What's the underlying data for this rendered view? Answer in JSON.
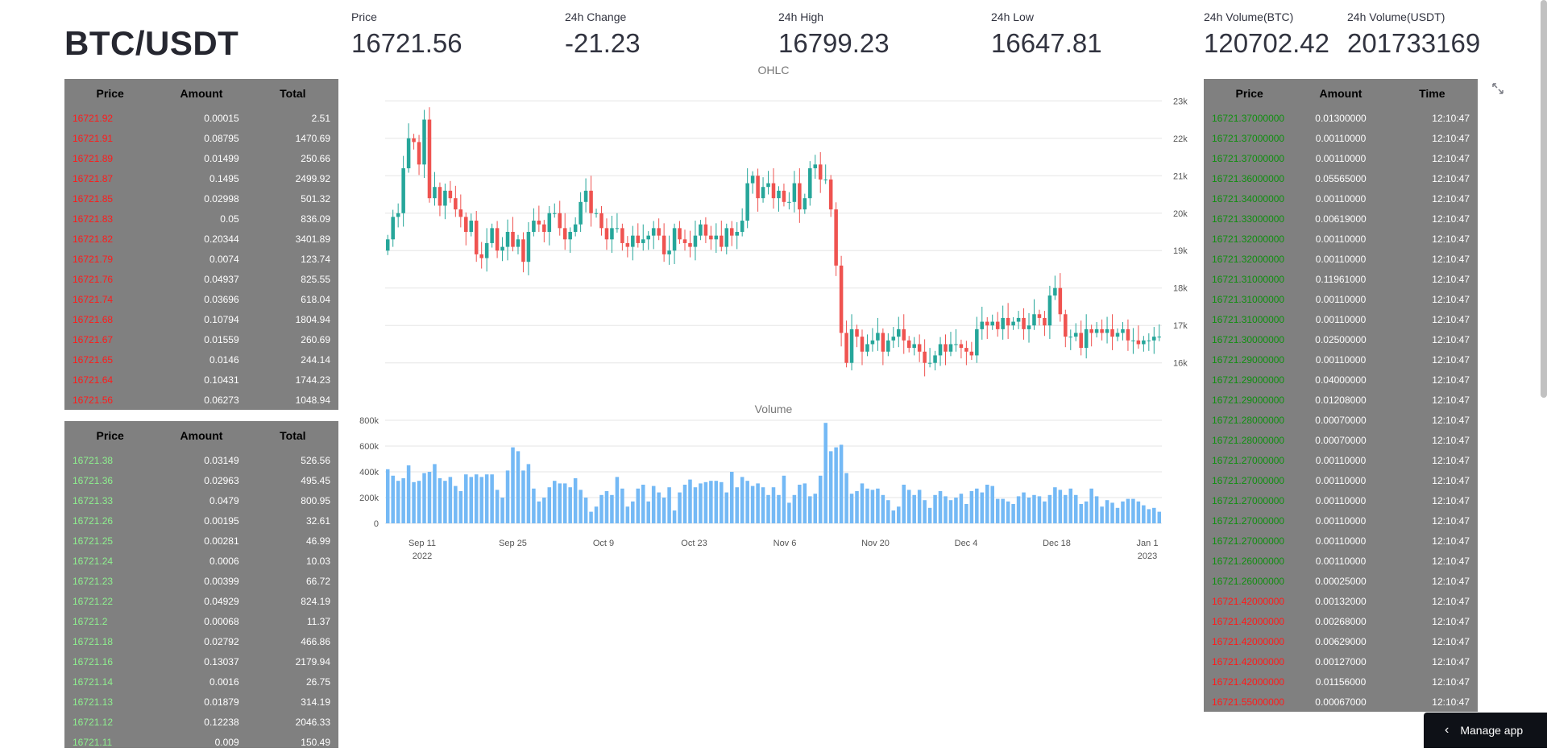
{
  "title": "BTC/USDT",
  "metrics": [
    {
      "label": "Price",
      "value": "16721.56"
    },
    {
      "label": "24h Change",
      "value": "-21.23"
    },
    {
      "label": "24h High",
      "value": "16799.23"
    },
    {
      "label": "24h Low",
      "value": "16647.81"
    },
    {
      "label": "24h Volume(BTC)",
      "value": "120702.42"
    },
    {
      "label": "24h Volume(USDT)",
      "value": "201733169"
    }
  ],
  "asks": {
    "headers": [
      "Price",
      "Amount",
      "Total"
    ],
    "rows": [
      [
        "16721.92",
        "0.00015",
        "2.51"
      ],
      [
        "16721.91",
        "0.08795",
        "1470.69"
      ],
      [
        "16721.89",
        "0.01499",
        "250.66"
      ],
      [
        "16721.87",
        "0.1495",
        "2499.92"
      ],
      [
        "16721.85",
        "0.02998",
        "501.32"
      ],
      [
        "16721.83",
        "0.05",
        "836.09"
      ],
      [
        "16721.82",
        "0.20344",
        "3401.89"
      ],
      [
        "16721.79",
        "0.0074",
        "123.74"
      ],
      [
        "16721.76",
        "0.04937",
        "825.55"
      ],
      [
        "16721.74",
        "0.03696",
        "618.04"
      ],
      [
        "16721.68",
        "0.10794",
        "1804.94"
      ],
      [
        "16721.67",
        "0.01559",
        "260.69"
      ],
      [
        "16721.65",
        "0.0146",
        "244.14"
      ],
      [
        "16721.64",
        "0.10431",
        "1744.23"
      ],
      [
        "16721.56",
        "0.06273",
        "1048.94"
      ]
    ]
  },
  "bids": {
    "headers": [
      "Price",
      "Amount",
      "Total"
    ],
    "rows": [
      [
        "16721.38",
        "0.03149",
        "526.56"
      ],
      [
        "16721.36",
        "0.02963",
        "495.45"
      ],
      [
        "16721.33",
        "0.0479",
        "800.95"
      ],
      [
        "16721.26",
        "0.00195",
        "32.61"
      ],
      [
        "16721.25",
        "0.00281",
        "46.99"
      ],
      [
        "16721.24",
        "0.0006",
        "10.03"
      ],
      [
        "16721.23",
        "0.00399",
        "66.72"
      ],
      [
        "16721.22",
        "0.04929",
        "824.19"
      ],
      [
        "16721.2",
        "0.00068",
        "11.37"
      ],
      [
        "16721.18",
        "0.02792",
        "466.86"
      ],
      [
        "16721.16",
        "0.13037",
        "2179.94"
      ],
      [
        "16721.14",
        "0.0016",
        "26.75"
      ],
      [
        "16721.13",
        "0.01879",
        "314.19"
      ],
      [
        "16721.12",
        "0.12238",
        "2046.33"
      ],
      [
        "16721.11",
        "0.009",
        "150.49"
      ]
    ]
  },
  "trades": {
    "headers": [
      "Price",
      "Amount",
      "Time"
    ],
    "rows": [
      [
        "16721.37000000",
        "0.01300000",
        "12:10:47",
        "buy"
      ],
      [
        "16721.37000000",
        "0.00110000",
        "12:10:47",
        "buy"
      ],
      [
        "16721.37000000",
        "0.00110000",
        "12:10:47",
        "buy"
      ],
      [
        "16721.36000000",
        "0.05565000",
        "12:10:47",
        "buy"
      ],
      [
        "16721.34000000",
        "0.00110000",
        "12:10:47",
        "buy"
      ],
      [
        "16721.33000000",
        "0.00619000",
        "12:10:47",
        "buy"
      ],
      [
        "16721.32000000",
        "0.00110000",
        "12:10:47",
        "buy"
      ],
      [
        "16721.32000000",
        "0.00110000",
        "12:10:47",
        "buy"
      ],
      [
        "16721.31000000",
        "0.11961000",
        "12:10:47",
        "buy"
      ],
      [
        "16721.31000000",
        "0.00110000",
        "12:10:47",
        "buy"
      ],
      [
        "16721.31000000",
        "0.00110000",
        "12:10:47",
        "buy"
      ],
      [
        "16721.30000000",
        "0.02500000",
        "12:10:47",
        "buy"
      ],
      [
        "16721.29000000",
        "0.00110000",
        "12:10:47",
        "buy"
      ],
      [
        "16721.29000000",
        "0.04000000",
        "12:10:47",
        "buy"
      ],
      [
        "16721.29000000",
        "0.01208000",
        "12:10:47",
        "buy"
      ],
      [
        "16721.28000000",
        "0.00070000",
        "12:10:47",
        "buy"
      ],
      [
        "16721.28000000",
        "0.00070000",
        "12:10:47",
        "buy"
      ],
      [
        "16721.27000000",
        "0.00110000",
        "12:10:47",
        "buy"
      ],
      [
        "16721.27000000",
        "0.00110000",
        "12:10:47",
        "buy"
      ],
      [
        "16721.27000000",
        "0.00110000",
        "12:10:47",
        "buy"
      ],
      [
        "16721.27000000",
        "0.00110000",
        "12:10:47",
        "buy"
      ],
      [
        "16721.27000000",
        "0.00110000",
        "12:10:47",
        "buy"
      ],
      [
        "16721.26000000",
        "0.00110000",
        "12:10:47",
        "buy"
      ],
      [
        "16721.26000000",
        "0.00025000",
        "12:10:47",
        "buy"
      ],
      [
        "16721.42000000",
        "0.00132000",
        "12:10:47",
        "sell"
      ],
      [
        "16721.42000000",
        "0.00268000",
        "12:10:47",
        "sell"
      ],
      [
        "16721.42000000",
        "0.00629000",
        "12:10:47",
        "sell"
      ],
      [
        "16721.42000000",
        "0.00127000",
        "12:10:47",
        "sell"
      ],
      [
        "16721.42000000",
        "0.01156000",
        "12:10:47",
        "sell"
      ],
      [
        "16721.55000000",
        "0.00067000",
        "12:10:47",
        "sell"
      ]
    ]
  },
  "manage_app": "Manage app",
  "chart_data": [
    {
      "type": "candlestick",
      "title": "OHLC",
      "up_color": "#26a69a",
      "down_color": "#ef5350",
      "ylim": [
        15800,
        23200
      ],
      "y_ticks": [
        "16k",
        "17k",
        "18k",
        "19k",
        "20k",
        "21k",
        "22k",
        "23k"
      ],
      "x_ticks": [
        "Sep 11\n2022",
        "Sep 25",
        "Oct 9",
        "Oct 23",
        "Nov 6",
        "Nov 20",
        "Dec 4",
        "Dec 18",
        "Jan 1\n2023"
      ],
      "close": [
        19300,
        19900,
        20000,
        21200,
        22000,
        21900,
        21300,
        22500,
        20400,
        20700,
        20200,
        20600,
        20400,
        20100,
        19900,
        19500,
        19800,
        18900,
        18800,
        19200,
        19600,
        19000,
        19100,
        19500,
        19100,
        19300,
        18700,
        19500,
        19800,
        19700,
        19500,
        20000,
        20000,
        19600,
        19300,
        19500,
        19700,
        20300,
        20600,
        20000,
        20000,
        19600,
        19300,
        19600,
        19600,
        19200,
        19100,
        19400,
        19200,
        19300,
        19400,
        19600,
        19400,
        18900,
        19000,
        19600,
        19300,
        19200,
        19100,
        19400,
        19700,
        19400,
        19300,
        19400,
        19100,
        19600,
        19400,
        19500,
        19800,
        20800,
        21000,
        20400,
        20700,
        20800,
        20400,
        20600,
        20300,
        20300,
        20800,
        20100,
        20400,
        21200,
        21300,
        20900,
        20900,
        20100,
        18600,
        16800,
        16000,
        16900,
        16700,
        16300,
        16500,
        16600,
        16800,
        16300,
        16600,
        16700,
        16900,
        16600,
        16400,
        16500,
        16300,
        16000,
        16000,
        16200,
        16500,
        16300,
        16500,
        16500,
        16400,
        16300,
        16200,
        16900,
        17100,
        17000,
        17100,
        16900,
        17200,
        17000,
        17100,
        17200,
        16900,
        17000,
        17300,
        17200,
        17000,
        17800,
        18000,
        17300,
        16700,
        16700,
        16800,
        16400,
        16900,
        16800,
        16900,
        16800,
        16900,
        16700,
        16800,
        16900,
        16600,
        16600,
        16500,
        16600,
        16600,
        16700,
        16700
      ],
      "volume": [
        420000,
        370000,
        330000,
        350000,
        450000,
        320000,
        330000,
        390000,
        400000,
        460000,
        350000,
        330000,
        360000,
        290000,
        250000,
        380000,
        360000,
        380000,
        360000,
        380000,
        380000,
        260000,
        200000,
        410000,
        590000,
        560000,
        410000,
        460000,
        270000,
        170000,
        200000,
        280000,
        330000,
        310000,
        310000,
        280000,
        350000,
        260000,
        200000,
        90000,
        130000,
        220000,
        250000,
        220000,
        360000,
        270000,
        130000,
        170000,
        270000,
        300000,
        170000,
        290000,
        240000,
        200000,
        280000,
        100000,
        240000,
        300000,
        340000,
        280000,
        310000,
        320000,
        330000,
        330000,
        320000,
        240000,
        400000,
        280000,
        360000,
        330000,
        290000,
        310000,
        280000,
        220000,
        280000,
        220000,
        370000,
        160000,
        220000,
        300000,
        310000,
        210000,
        230000,
        370000,
        780000,
        560000,
        590000,
        610000,
        390000,
        230000,
        250000,
        310000,
        270000,
        260000,
        270000,
        220000,
        180000,
        100000,
        130000,
        300000,
        260000,
        220000,
        260000,
        180000,
        120000,
        220000,
        250000,
        210000,
        180000,
        200000,
        230000,
        150000,
        250000,
        270000,
        240000,
        300000,
        290000,
        190000,
        190000,
        170000,
        150000,
        210000,
        240000,
        200000,
        220000,
        210000,
        170000,
        220000,
        280000,
        260000,
        220000,
        270000,
        220000,
        150000,
        170000,
        270000,
        210000,
        130000,
        180000,
        160000,
        120000,
        170000,
        190000,
        190000,
        170000,
        140000,
        110000,
        120000,
        90000
      ]
    },
    {
      "type": "bar",
      "title": "Volume",
      "color": "#74b9f5",
      "ylim": [
        0,
        800000
      ],
      "y_ticks": [
        "0",
        "200k",
        "400k",
        "600k",
        "800k"
      ]
    }
  ]
}
